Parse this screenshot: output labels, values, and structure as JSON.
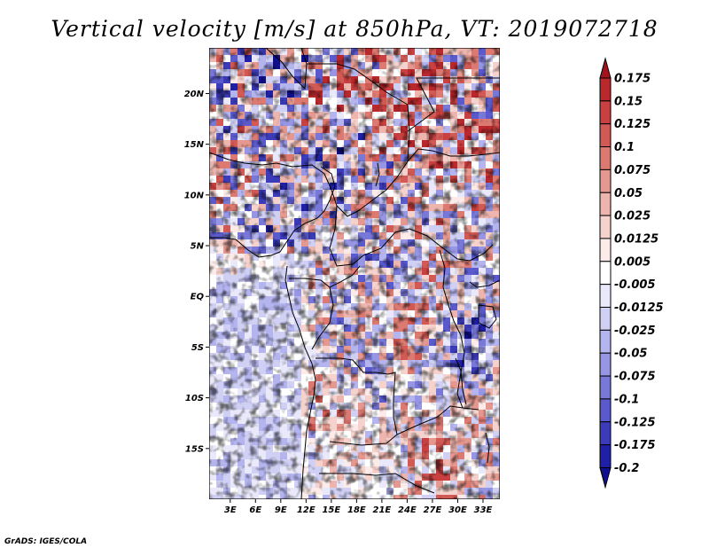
{
  "chart_data": {
    "type": "heatmap",
    "title": "Vertical velocity [m/s] at 850hPa, VT: 2019072718",
    "variable": "Vertical velocity",
    "units": "m/s",
    "level": "850hPa",
    "valid_time": "2019072718",
    "x_ticks": [
      "3E",
      "6E",
      "9E",
      "12E",
      "15E",
      "18E",
      "21E",
      "24E",
      "27E",
      "30E",
      "33E"
    ],
    "x_tick_values": [
      3,
      6,
      9,
      12,
      15,
      18,
      21,
      24,
      27,
      30,
      33
    ],
    "y_ticks": [
      "20N",
      "15N",
      "10N",
      "5N",
      "EQ",
      "5S",
      "10S",
      "15S"
    ],
    "y_tick_values": [
      20,
      15,
      10,
      5,
      0,
      -5,
      -10,
      -15
    ],
    "xlim": [
      0.5,
      35
    ],
    "ylim": [
      -20,
      24.5
    ],
    "colorbar": {
      "levels": [
        "0.175",
        "0.15",
        "0.125",
        "0.1",
        "0.075",
        "0.05",
        "0.025",
        "0.0125",
        "0.005",
        "-0.005",
        "-0.0125",
        "-0.025",
        "-0.05",
        "-0.075",
        "-0.1",
        "-0.125",
        "-0.175",
        "-0.2"
      ],
      "colors": [
        "#a0141e",
        "#b8282d",
        "#c8403f",
        "#d25a55",
        "#dc7a72",
        "#e5988f",
        "#eeb5ae",
        "#f6d2cd",
        "#fcebe9",
        "#ffffff",
        "#e9e9fb",
        "#d0d0f5",
        "#b4b4ee",
        "#9696e4",
        "#7878d8",
        "#5a5acc",
        "#3c3cbb",
        "#2020a6",
        "#10108c"
      ]
    },
    "credit": "GrADS: IGES/COLA"
  }
}
